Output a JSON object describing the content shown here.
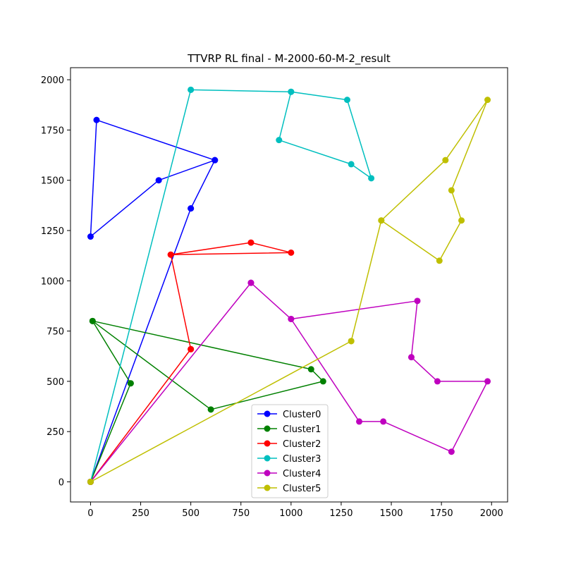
{
  "chart_data": {
    "type": "line",
    "title": "TTVRP RL final - M-2000-60-M-2_result",
    "xlabel": "",
    "ylabel": "",
    "xlim": [
      -100,
      2080
    ],
    "ylim": [
      -100,
      2060
    ],
    "xticks": [
      0,
      250,
      500,
      750,
      1000,
      1250,
      1500,
      1750,
      2000
    ],
    "yticks": [
      0,
      250,
      500,
      750,
      1000,
      1250,
      1500,
      1750,
      2000
    ],
    "grid": false,
    "legend_position": "lower-center",
    "series": [
      {
        "name": "Cluster0",
        "color": "#0000ff",
        "points": [
          [
            0,
            0
          ],
          [
            500,
            1360
          ],
          [
            620,
            1600
          ],
          [
            30,
            1800
          ],
          [
            0,
            1220
          ],
          [
            340,
            1500
          ],
          [
            620,
            1600
          ],
          [
            500,
            1360
          ],
          [
            0,
            0
          ]
        ]
      },
      {
        "name": "Cluster1",
        "color": "#008000",
        "points": [
          [
            0,
            0
          ],
          [
            200,
            490
          ],
          [
            10,
            800
          ],
          [
            600,
            360
          ],
          [
            1160,
            500
          ],
          [
            1100,
            560
          ],
          [
            10,
            800
          ],
          [
            200,
            490
          ],
          [
            0,
            0
          ]
        ]
      },
      {
        "name": "Cluster2",
        "color": "#ff0000",
        "points": [
          [
            0,
            0
          ],
          [
            500,
            660
          ],
          [
            400,
            1130
          ],
          [
            800,
            1190
          ],
          [
            1000,
            1140
          ],
          [
            400,
            1130
          ],
          [
            500,
            660
          ],
          [
            0,
            0
          ]
        ]
      },
      {
        "name": "Cluster3",
        "color": "#00bfbf",
        "points": [
          [
            0,
            0
          ],
          [
            500,
            1950
          ],
          [
            1000,
            1940
          ],
          [
            940,
            1700
          ],
          [
            1300,
            1580
          ],
          [
            1400,
            1510
          ],
          [
            1280,
            1900
          ],
          [
            1000,
            1940
          ],
          [
            500,
            1950
          ],
          [
            0,
            0
          ]
        ]
      },
      {
        "name": "Cluster4",
        "color": "#bf00bf",
        "points": [
          [
            0,
            0
          ],
          [
            800,
            990
          ],
          [
            1000,
            810
          ],
          [
            1630,
            900
          ],
          [
            1600,
            620
          ],
          [
            1730,
            500
          ],
          [
            1980,
            500
          ],
          [
            1800,
            150
          ],
          [
            1460,
            300
          ],
          [
            1340,
            300
          ],
          [
            1000,
            810
          ],
          [
            800,
            990
          ],
          [
            0,
            0
          ]
        ]
      },
      {
        "name": "Cluster5",
        "color": "#bfbf00",
        "points": [
          [
            0,
            0
          ],
          [
            1300,
            700
          ],
          [
            1450,
            1300
          ],
          [
            1770,
            1600
          ],
          [
            1980,
            1900
          ],
          [
            1800,
            1450
          ],
          [
            1850,
            1300
          ],
          [
            1740,
            1100
          ],
          [
            1450,
            1300
          ],
          [
            1300,
            700
          ],
          [
            0,
            0
          ]
        ]
      }
    ]
  }
}
